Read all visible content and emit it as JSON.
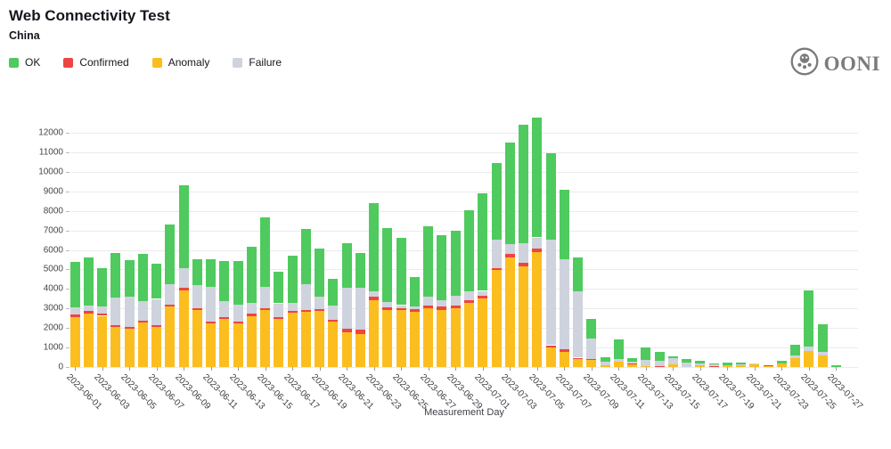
{
  "header": {
    "title": "Web Connectivity Test",
    "subtitle": "China",
    "logo_text": "OONI"
  },
  "legend": [
    {
      "label": "OK",
      "color": "#4fca5e"
    },
    {
      "label": "Confirmed",
      "color": "#ee4444"
    },
    {
      "label": "Anomaly",
      "color": "#fcbe1f"
    },
    {
      "label": "Failure",
      "color": "#ced3de"
    }
  ],
  "colors": {
    "ok": "#4fca5e",
    "confirmed": "#ee4444",
    "anomaly": "#fcbe1f",
    "failure": "#ced3de",
    "gridline": "#ebebeb",
    "logo_gray": "#7b7b7b",
    "text_dark": "#15161d"
  },
  "chart_data": {
    "type": "bar",
    "stacked": true,
    "title": "Web Connectivity Test",
    "subtitle": "China",
    "xlabel": "Measurement Day",
    "ylabel": "",
    "ylim": [
      0,
      13000
    ],
    "ytick_step": 1000,
    "ytick_max": 12000,
    "grid": true,
    "legend_position": "top-left",
    "x_labeled_every": 2,
    "categories": [
      "2023-06-01",
      "2023-06-02",
      "2023-06-03",
      "2023-06-04",
      "2023-06-05",
      "2023-06-06",
      "2023-06-07",
      "2023-06-08",
      "2023-06-09",
      "2023-06-10",
      "2023-06-11",
      "2023-06-12",
      "2023-06-13",
      "2023-06-14",
      "2023-06-15",
      "2023-06-16",
      "2023-06-17",
      "2023-06-18",
      "2023-06-19",
      "2023-06-20",
      "2023-06-21",
      "2023-06-22",
      "2023-06-23",
      "2023-06-24",
      "2023-06-25",
      "2023-06-26",
      "2023-06-27",
      "2023-06-28",
      "2023-06-29",
      "2023-06-30",
      "2023-07-01",
      "2023-07-02",
      "2023-07-03",
      "2023-07-04",
      "2023-07-05",
      "2023-07-06",
      "2023-07-07",
      "2023-07-08",
      "2023-07-09",
      "2023-07-10",
      "2023-07-11",
      "2023-07-12",
      "2023-07-13",
      "2023-07-14",
      "2023-07-15",
      "2023-07-16",
      "2023-07-17",
      "2023-07-18",
      "2023-07-19",
      "2023-07-20",
      "2023-07-21",
      "2023-07-22",
      "2023-07-23",
      "2023-07-24",
      "2023-07-25",
      "2023-07-26",
      "2023-07-27"
    ],
    "series": [
      {
        "name": "Anomaly",
        "color": "#fcbe1f",
        "values": [
          2570,
          2740,
          2620,
          2040,
          1950,
          2280,
          2050,
          3100,
          3910,
          2910,
          2220,
          2450,
          2220,
          2600,
          2910,
          2450,
          2800,
          2820,
          2860,
          2330,
          1800,
          1670,
          3440,
          2940,
          2910,
          2830,
          3010,
          2940,
          3000,
          3290,
          3520,
          4960,
          5620,
          5160,
          5880,
          1000,
          780,
          400,
          350,
          100,
          290,
          140,
          60,
          0,
          140,
          0,
          80,
          0,
          100,
          90,
          120,
          50,
          170,
          440,
          820,
          580,
          0
        ]
      },
      {
        "name": "Confirmed",
        "color": "#ee4444",
        "values": [
          120,
          140,
          120,
          110,
          110,
          110,
          110,
          110,
          140,
          110,
          120,
          90,
          120,
          120,
          110,
          110,
          80,
          120,
          110,
          110,
          150,
          240,
          150,
          100,
          100,
          150,
          150,
          150,
          150,
          150,
          120,
          120,
          180,
          180,
          180,
          120,
          120,
          80,
          80,
          0,
          0,
          30,
          0,
          30,
          0,
          0,
          0,
          50,
          0,
          0,
          0,
          30,
          0,
          0,
          0,
          0,
          0
        ]
      },
      {
        "name": "Failure",
        "color": "#ced3de",
        "values": [
          360,
          270,
          370,
          1410,
          1560,
          1000,
          1330,
          1040,
          1020,
          1180,
          1750,
          820,
          870,
          550,
          1110,
          700,
          390,
          1290,
          650,
          730,
          2100,
          2170,
          310,
          280,
          160,
          110,
          460,
          350,
          500,
          430,
          260,
          1430,
          500,
          990,
          580,
          5390,
          4640,
          3390,
          1030,
          190,
          140,
          110,
          310,
          280,
          330,
          240,
          120,
          70,
          0,
          60,
          60,
          0,
          0,
          170,
          240,
          200,
          0
        ]
      },
      {
        "name": "OK",
        "color": "#4fca5e",
        "values": [
          2320,
          2450,
          1970,
          2280,
          1860,
          2410,
          1810,
          3040,
          4230,
          1340,
          1450,
          2090,
          2240,
          2910,
          3560,
          1630,
          2450,
          2850,
          2440,
          1370,
          2280,
          1750,
          4520,
          3800,
          3460,
          1520,
          3580,
          3300,
          3320,
          4170,
          4980,
          3930,
          5210,
          6070,
          6150,
          4460,
          3560,
          1730,
          990,
          210,
          1000,
          190,
          640,
          470,
          80,
          190,
          100,
          50,
          110,
          60,
          0,
          0,
          150,
          530,
          2880,
          1410,
          100
        ]
      }
    ]
  }
}
